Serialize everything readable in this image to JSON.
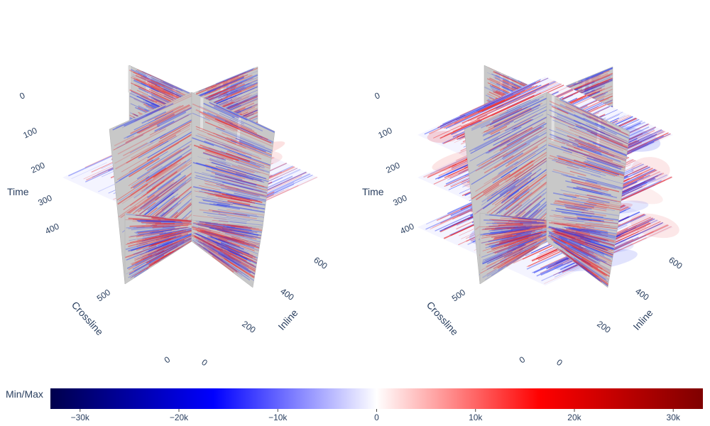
{
  "chart_data": [
    {
      "type": "3d-volume-slices",
      "axes": {
        "time": {
          "title": "Time",
          "ticks": [
            "0",
            "100",
            "200",
            "300",
            "400"
          ]
        },
        "crossline": {
          "title": "Crossline",
          "ticks": [
            "0",
            "500"
          ]
        },
        "inline": {
          "title": "Inline",
          "ticks": [
            "0",
            "200",
            "400",
            "600"
          ]
        }
      },
      "slices": {
        "inline_walls": 1,
        "crossline_walls": 1,
        "time_slices": [
          250
        ]
      }
    },
    {
      "type": "3d-volume-slices",
      "axes": {
        "time": {
          "title": "Time",
          "ticks": [
            "0",
            "100",
            "200",
            "300",
            "400"
          ]
        },
        "crossline": {
          "title": "Crossline",
          "ticks": [
            "0",
            "500"
          ]
        },
        "inline": {
          "title": "Inline",
          "ticks": [
            "0",
            "200",
            "400",
            "600"
          ]
        }
      },
      "slices": {
        "inline_walls": 1,
        "crossline_walls": 1,
        "time_slices": [
          150,
          250,
          350
        ]
      }
    }
  ],
  "colorbar": {
    "title": "Min/Max",
    "range": [
      -33000,
      33000
    ],
    "ticks": [
      {
        "value": -30000,
        "label": "−30k"
      },
      {
        "value": -20000,
        "label": "−20k"
      },
      {
        "value": -10000,
        "label": "−10k"
      },
      {
        "value": 0,
        "label": "0"
      },
      {
        "value": 10000,
        "label": "10k"
      },
      {
        "value": 20000,
        "label": "20k"
      },
      {
        "value": 30000,
        "label": "30k"
      }
    ],
    "colors": [
      "#00004c",
      "#0000ff",
      "#ffffff",
      "#ff0000",
      "#7f0000"
    ]
  },
  "colors": {
    "text": "#2a3f5f",
    "slice_base": "#c8c8c8",
    "positive": "#e8282c",
    "negative": "#2a3cf0"
  }
}
